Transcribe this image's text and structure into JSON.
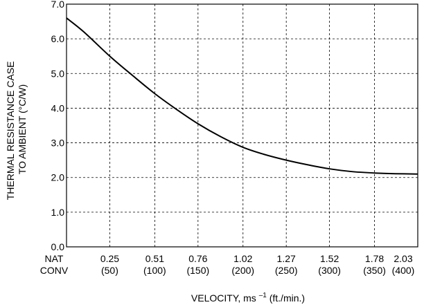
{
  "chart_data": {
    "type": "line",
    "ylabel_line1": "THERMAL RESISTANCE CASE",
    "ylabel_line2": "TO AMBIENT (°C/W)",
    "xlabel_main": "VELOCITY, ms ",
    "xlabel_exp": "–1",
    "xlabel_unit": " (ft./min.)",
    "ylim": [
      0,
      7
    ],
    "yticks": [
      "0.0",
      "1.0",
      "2.0",
      "3.0",
      "4.0",
      "5.0",
      "6.0",
      "7.0"
    ],
    "xlim": [
      0,
      2.03
    ],
    "x_tick_values": [
      0,
      0.25,
      0.51,
      0.76,
      1.02,
      1.27,
      1.52,
      1.78,
      2.03
    ],
    "x_ticks_line1": [
      "NAT",
      "0.25",
      "0.51",
      "0.76",
      "1.02",
      "1.27",
      "1.52",
      "1.78",
      "2.03"
    ],
    "x_ticks_line2": [
      "CONV",
      "(50)",
      "(100)",
      "(150)",
      "(200)",
      "(250)",
      "(300)",
      "(350)",
      "(400)"
    ],
    "grid": true,
    "grid_style": "dashed",
    "line_color": "#000000",
    "series": [
      {
        "x": [
          0,
          0.1,
          0.25,
          0.38,
          0.51,
          0.64,
          0.76,
          0.89,
          1.02,
          1.14,
          1.27,
          1.4,
          1.52,
          1.65,
          1.78,
          1.9,
          2.03
        ],
        "y": [
          6.6,
          6.2,
          5.5,
          4.95,
          4.42,
          3.95,
          3.55,
          3.18,
          2.87,
          2.67,
          2.5,
          2.36,
          2.25,
          2.17,
          2.13,
          2.11,
          2.1
        ]
      }
    ]
  }
}
